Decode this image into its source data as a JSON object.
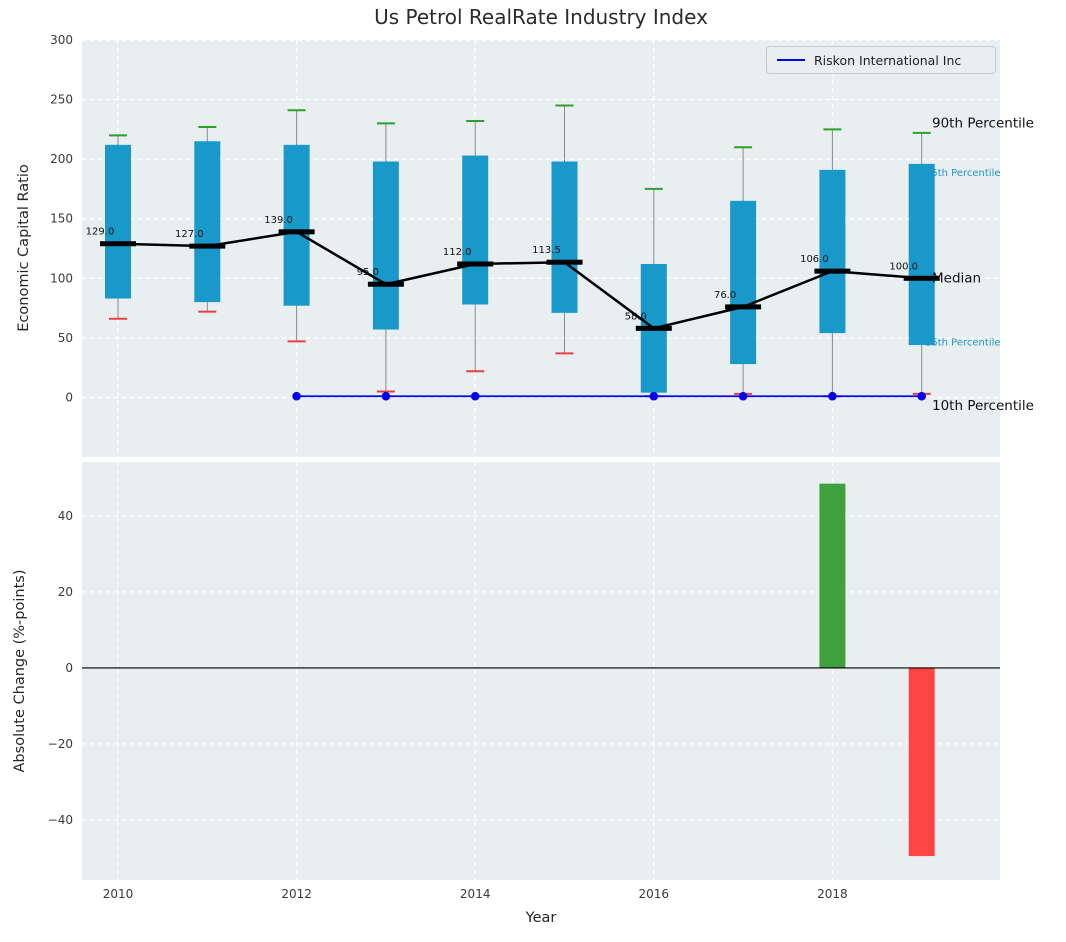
{
  "title": "Us Petrol RealRate Industry Index",
  "legend": {
    "label": "Riskon International Inc"
  },
  "colors": {
    "axes_bg": "#e9eef1",
    "grid": "#ffffff",
    "box_fill": "#1899c9",
    "p90_cap": "#2ca02c",
    "p10_cap": "#e84040",
    "median": "#000000",
    "company_line": "#0000ee",
    "bar_up": "#3da23d",
    "bar_down": "#ff4444",
    "whisker": "#8a8a8a",
    "percentile_label_teal": "#2196c3",
    "tick_text": "#3a3a3a",
    "annotation_text": "#111111"
  },
  "chart_data": [
    {
      "type": "boxplot",
      "panel": "top",
      "title": "Us Petrol RealRate Industry Index",
      "ylabel": "Economic Capital Ratio",
      "ylim": [
        -50,
        300
      ],
      "yticks": [
        0,
        50,
        100,
        150,
        200,
        250,
        300
      ],
      "xticks": [
        2010,
        2012,
        2014,
        2016,
        2018
      ],
      "years": [
        2010,
        2011,
        2012,
        2013,
        2014,
        2015,
        2016,
        2017,
        2018,
        2019
      ],
      "p90": [
        220,
        227,
        241,
        230,
        232,
        245,
        175,
        210,
        225,
        222
      ],
      "p75": [
        212,
        215,
        212,
        198,
        203,
        198,
        112,
        165,
        191,
        196
      ],
      "median": [
        129,
        127,
        139,
        95,
        112,
        113.5,
        58,
        76,
        106,
        100
      ],
      "median_labels": [
        "129.0",
        "127.0",
        "139.0",
        "95.0",
        "112.0",
        "113.5",
        "58.0",
        "76.0",
        "106.0",
        "100.0"
      ],
      "p25": [
        83,
        80,
        77,
        57,
        78,
        71,
        4,
        28,
        54,
        44
      ],
      "p10": [
        66,
        72,
        47,
        5,
        22,
        37,
        1,
        3,
        1,
        3
      ],
      "company": {
        "name": "Riskon International Inc",
        "years": [
          2012,
          2013,
          2014,
          2015,
          2016,
          2017,
          2018,
          2019
        ],
        "values": [
          1,
          1,
          1,
          1,
          1,
          1,
          1,
          1
        ],
        "marker_years": [
          2012,
          2013,
          2014,
          2016,
          2017,
          2018,
          2019
        ]
      },
      "annotations": [
        {
          "text": "90th Percentile",
          "value": 230,
          "style": "big"
        },
        {
          "text": "75th Percentile",
          "value": 189,
          "style": "small"
        },
        {
          "text": "Median",
          "value": 100,
          "style": "big"
        },
        {
          "text": "25th Percentile",
          "value": 47,
          "style": "small"
        },
        {
          "text": "10th Percentile",
          "value": -7,
          "style": "big"
        }
      ]
    },
    {
      "type": "bar",
      "panel": "bottom",
      "ylabel": "Absolute Change (%-points)",
      "xlabel": "Year",
      "ylim": [
        -55.8,
        54.2
      ],
      "yticks": [
        -40,
        -20,
        0,
        20,
        40
      ],
      "xticks": [
        2010,
        2012,
        2014,
        2016,
        2018
      ],
      "bars": [
        {
          "year": 2018,
          "value": 48.5
        },
        {
          "year": 2019,
          "value": -49.5
        }
      ]
    }
  ]
}
